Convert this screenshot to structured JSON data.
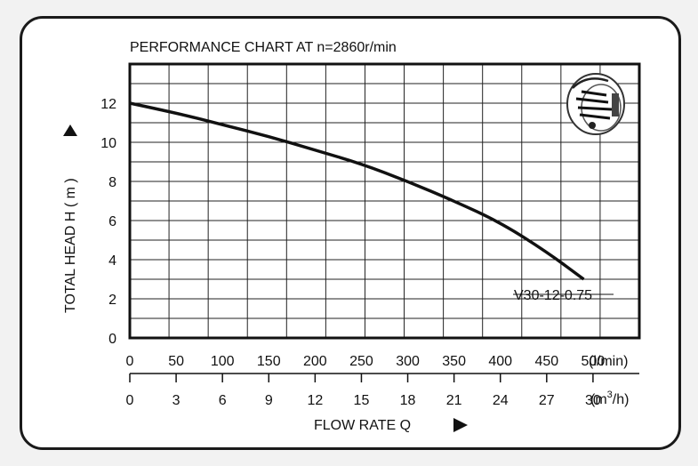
{
  "chart_data": {
    "type": "line",
    "title": "PERFORMANCE CHART AT  n=2860r/min",
    "ylabel": "TOTAL HEAD  H ( m )",
    "xlabel": "FLOW RATE Q",
    "x_unit_primary": "(l/min)",
    "x_unit_secondary_base": "(m",
    "x_unit_secondary_sup": "3",
    "x_unit_secondary_tail": "/h)",
    "ylim": [
      0,
      14
    ],
    "xlim": [
      0,
      550
    ],
    "y_ticks": [
      "0",
      "2",
      "4",
      "6",
      "8",
      "10",
      "12"
    ],
    "x_ticks_primary": [
      "0",
      "50",
      "100",
      "150",
      "200",
      "250",
      "300",
      "350",
      "400",
      "450",
      "500"
    ],
    "x_ticks_secondary": [
      "0",
      "3",
      "6",
      "9",
      "12",
      "15",
      "18",
      "21",
      "24",
      "27",
      "30"
    ],
    "grid": true,
    "series": [
      {
        "name": "V30-12-0.75",
        "x": [
          0,
          50,
          100,
          150,
          200,
          250,
          300,
          350,
          400,
          450,
          490
        ],
        "y": [
          12.0,
          11.5,
          10.9,
          10.3,
          9.6,
          8.9,
          8.0,
          7.0,
          5.9,
          4.4,
          3.0
        ]
      }
    ],
    "annotation": "V30-12-0.75"
  },
  "icons": [
    "pump-impeller-icon",
    "triangle-up-icon",
    "triangle-right-icon"
  ]
}
